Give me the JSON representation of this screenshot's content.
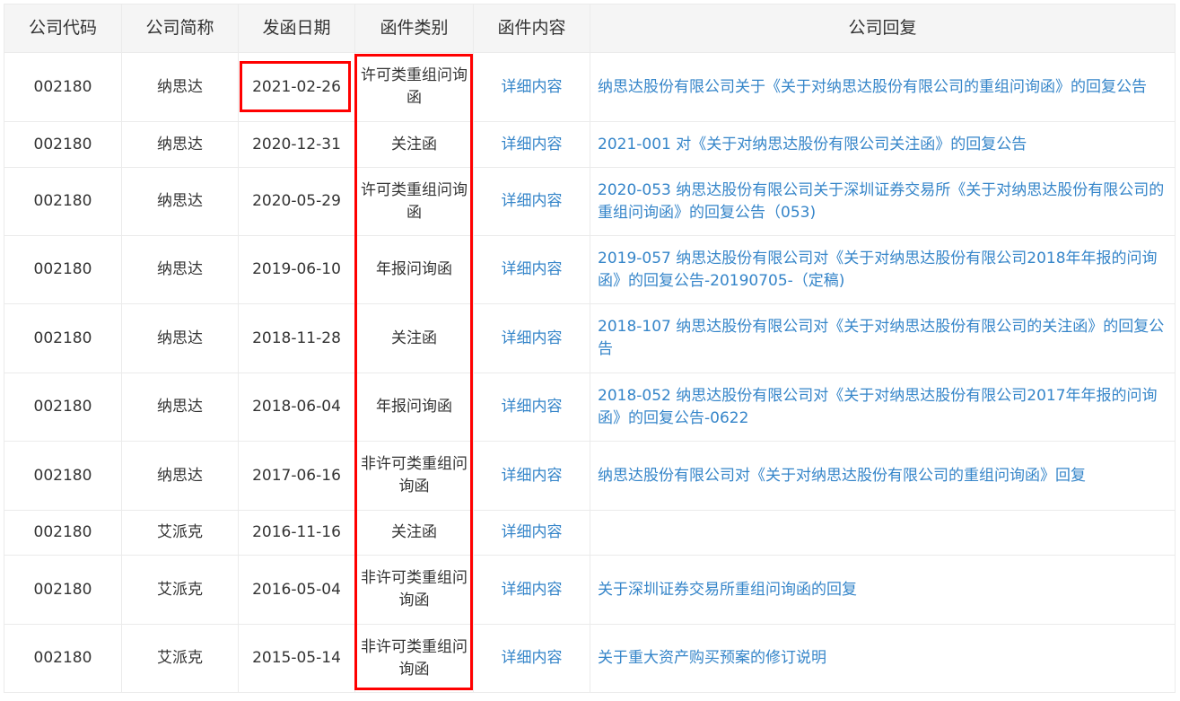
{
  "headers": [
    "公司代码",
    "公司简称",
    "发函日期",
    "函件类别",
    "函件内容",
    "公司回复"
  ],
  "rows": [
    {
      "code": "002180",
      "name": "纳思达",
      "date": "2021-02-26",
      "type": "许可类重组问询函",
      "detail": "详细内容",
      "reply": "纳思达股份有限公司关于《关于对纳思达股份有限公司的重组问询函》的回复公告"
    },
    {
      "code": "002180",
      "name": "纳思达",
      "date": "2020-12-31",
      "type": "关注函",
      "detail": "详细内容",
      "reply": "2021-001 对《关于对纳思达股份有限公司关注函》的回复公告"
    },
    {
      "code": "002180",
      "name": "纳思达",
      "date": "2020-05-29",
      "type": "许可类重组问询函",
      "detail": "详细内容",
      "reply": "2020-053 纳思达股份有限公司关于深圳证券交易所《关于对纳思达股份有限公司的重组问询函》的回复公告（053)"
    },
    {
      "code": "002180",
      "name": "纳思达",
      "date": "2019-06-10",
      "type": "年报问询函",
      "detail": "详细内容",
      "reply": "2019-057 纳思达股份有限公司对《关于对纳思达股份有限公司2018年年报的问询函》的回复公告-20190705-（定稿)"
    },
    {
      "code": "002180",
      "name": "纳思达",
      "date": "2018-11-28",
      "type": "关注函",
      "detail": "详细内容",
      "reply": "2018-107 纳思达股份有限公司对《关于对纳思达股份有限公司的关注函》的回复公告"
    },
    {
      "code": "002180",
      "name": "纳思达",
      "date": "2018-06-04",
      "type": "年报问询函",
      "detail": "详细内容",
      "reply": "2018-052 纳思达股份有限公司对《关于对纳思达股份有限公司2017年年报的问询函》的回复公告-0622"
    },
    {
      "code": "002180",
      "name": "纳思达",
      "date": "2017-06-16",
      "type": "非许可类重组问询函",
      "detail": "详细内容",
      "reply": "纳思达股份有限公司对《关于对纳思达股份有限公司的重组问询函》回复"
    },
    {
      "code": "002180",
      "name": "艾派克",
      "date": "2016-11-16",
      "type": "关注函",
      "detail": "详细内容",
      "reply": ""
    },
    {
      "code": "002180",
      "name": "艾派克",
      "date": "2016-05-04",
      "type": "非许可类重组问询函",
      "detail": "详细内容",
      "reply": "关于深圳证券交易所重组问询函的回复"
    },
    {
      "code": "002180",
      "name": "艾派克",
      "date": "2015-05-14",
      "type": "非许可类重组问询函",
      "detail": "详细内容",
      "reply": "关于重大资产购买预案的修订说明"
    }
  ],
  "colors": {
    "link": "#3585c9",
    "highlight": "#ff0000",
    "header_bg": "#f5f5f5"
  }
}
